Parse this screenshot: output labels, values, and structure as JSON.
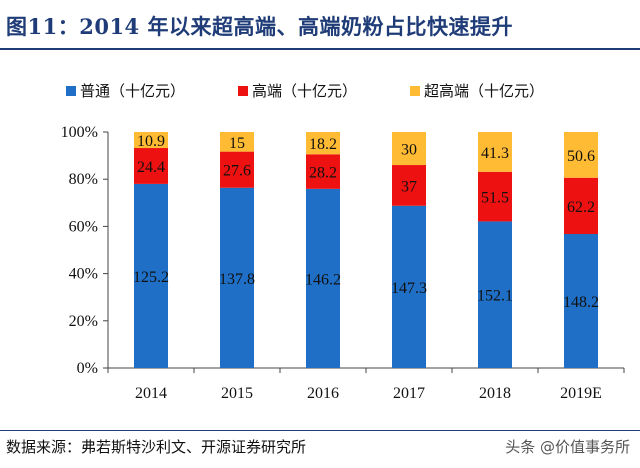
{
  "title": "图11：2014 年以来超高端、高端奶粉占比快速提升",
  "source": "数据来源：弗若斯特沙利文、开源证券研究所",
  "watermark": "头条 @价值事务所",
  "chart_data": {
    "type": "bar",
    "stacked": "percent",
    "categories": [
      "2014",
      "2015",
      "2016",
      "2017",
      "2018",
      "2019E"
    ],
    "series": [
      {
        "name": "普通（十亿元）",
        "color": "#1f6fc6",
        "values": [
          125.2,
          137.8,
          146.2,
          147.3,
          152.1,
          148.2
        ]
      },
      {
        "name": "高端（十亿元）",
        "color": "#ee1111",
        "values": [
          24.4,
          27.6,
          28.2,
          37,
          51.5,
          62.2
        ]
      },
      {
        "name": "超高端（十亿元）",
        "color": "#ffbb33",
        "values": [
          10.9,
          15,
          18.2,
          30,
          41.3,
          50.6
        ]
      }
    ],
    "yticks": [
      "0%",
      "20%",
      "40%",
      "60%",
      "80%",
      "100%"
    ],
    "ylim": [
      0,
      100
    ],
    "grid": false,
    "legend_position": "top"
  }
}
